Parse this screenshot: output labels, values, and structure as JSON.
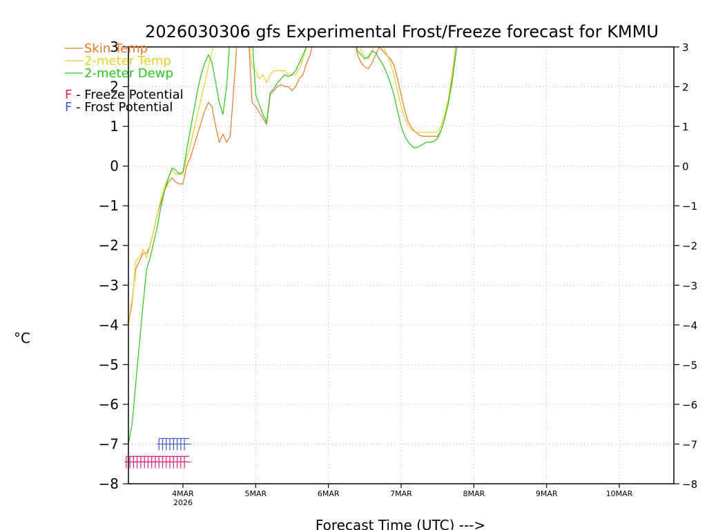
{
  "chart_data": {
    "type": "line",
    "title": "2026030306 gfs Experimental Frost/Freeze forecast for KMMU",
    "xlabel": "Forecast Time (UTC) --->",
    "ylabel": "°C",
    "ylim": [
      -8,
      3
    ],
    "xlim": [
      3.25,
      10.75
    ],
    "y_ticks": [
      "−8",
      "−7",
      "−6",
      "−5",
      "−4",
      "−3",
      "−2",
      "−1",
      "0",
      "1",
      "2",
      "3"
    ],
    "y_ticks_right": [
      "−8",
      "−7",
      "−6",
      "−5",
      "−4",
      "−3",
      "−2",
      "−1",
      "0",
      "1",
      "2",
      "3"
    ],
    "x_ticks": [
      {
        "day": 4,
        "label": "4MAR",
        "sub": "2026"
      },
      {
        "day": 5,
        "label": "5MAR"
      },
      {
        "day": 6,
        "label": "6MAR"
      },
      {
        "day": 7,
        "label": "7MAR"
      },
      {
        "day": 8,
        "label": "8MAR"
      },
      {
        "day": 9,
        "label": "9MAR"
      },
      {
        "day": 10,
        "label": "10MAR"
      }
    ],
    "grid": true,
    "series": [
      {
        "name": "Skin Temp",
        "color": "#e8782a",
        "points": [
          [
            3.25,
            -4.0
          ],
          [
            3.3,
            -3.4
          ],
          [
            3.35,
            -2.6
          ],
          [
            3.4,
            -2.4
          ],
          [
            3.45,
            -2.2
          ],
          [
            3.5,
            -2.2
          ],
          [
            3.55,
            -2.0
          ],
          [
            3.6,
            -1.6
          ],
          [
            3.65,
            -1.2
          ],
          [
            3.7,
            -0.9
          ],
          [
            3.75,
            -0.6
          ],
          [
            3.8,
            -0.4
          ],
          [
            3.85,
            -0.3
          ],
          [
            3.9,
            -0.4
          ],
          [
            3.95,
            -0.45
          ],
          [
            4.0,
            -0.45
          ],
          [
            4.05,
            0.0
          ],
          [
            4.1,
            0.2
          ],
          [
            4.15,
            0.5
          ],
          [
            4.2,
            0.8
          ],
          [
            4.25,
            1.1
          ],
          [
            4.3,
            1.4
          ],
          [
            4.35,
            1.6
          ],
          [
            4.4,
            1.5
          ],
          [
            4.45,
            1.0
          ],
          [
            4.5,
            0.6
          ],
          [
            4.55,
            0.8
          ],
          [
            4.6,
            0.6
          ],
          [
            4.65,
            0.75
          ],
          [
            4.7,
            2.0
          ],
          [
            4.75,
            3.3
          ],
          null,
          [
            4.9,
            3.3
          ],
          [
            4.95,
            1.6
          ],
          [
            5.0,
            1.5
          ],
          [
            5.05,
            1.35
          ],
          [
            5.1,
            1.2
          ],
          [
            5.15,
            1.05
          ],
          [
            5.2,
            1.8
          ],
          [
            5.25,
            1.9
          ],
          [
            5.3,
            2.0
          ],
          [
            5.35,
            2.05
          ],
          [
            5.4,
            2.0
          ],
          [
            5.45,
            2.0
          ],
          [
            5.5,
            1.9
          ],
          [
            5.55,
            2.0
          ],
          [
            5.6,
            2.2
          ],
          [
            5.65,
            2.3
          ],
          [
            5.7,
            2.6
          ],
          [
            5.75,
            2.8
          ],
          [
            5.8,
            3.2
          ],
          null,
          [
            6.35,
            3.3
          ],
          [
            6.4,
            2.8
          ],
          [
            6.45,
            2.6
          ],
          [
            6.5,
            2.5
          ],
          [
            6.55,
            2.45
          ],
          [
            6.6,
            2.6
          ],
          [
            6.65,
            2.8
          ],
          [
            6.7,
            3.0
          ],
          [
            6.75,
            2.9
          ],
          [
            6.8,
            2.8
          ],
          [
            6.85,
            2.7
          ],
          [
            6.9,
            2.55
          ],
          [
            6.95,
            2.2
          ],
          [
            7.0,
            1.8
          ],
          [
            7.05,
            1.4
          ],
          [
            7.1,
            1.1
          ],
          [
            7.15,
            0.95
          ],
          [
            7.2,
            0.85
          ],
          [
            7.25,
            0.78
          ],
          [
            7.3,
            0.75
          ],
          [
            7.35,
            0.75
          ],
          [
            7.4,
            0.75
          ],
          [
            7.45,
            0.75
          ],
          [
            7.5,
            0.75
          ],
          [
            7.55,
            0.9
          ],
          [
            7.6,
            1.2
          ],
          [
            7.65,
            1.6
          ],
          [
            7.7,
            2.2
          ],
          [
            7.75,
            3.0
          ],
          [
            7.8,
            3.5
          ]
        ]
      },
      {
        "name": "2-meter Temp",
        "color": "#e8d12a",
        "points": [
          [
            3.25,
            -4.0
          ],
          [
            3.3,
            -3.5
          ],
          [
            3.35,
            -2.4
          ],
          [
            3.4,
            -2.3
          ],
          [
            3.45,
            -2.1
          ],
          [
            3.5,
            -2.3
          ],
          [
            3.55,
            -2.0
          ],
          [
            3.6,
            -1.6
          ],
          [
            3.65,
            -1.2
          ],
          [
            3.7,
            -0.8
          ],
          [
            3.75,
            -0.5
          ],
          [
            3.8,
            -0.3
          ],
          [
            3.85,
            -0.1
          ],
          [
            3.9,
            -0.2
          ],
          [
            3.95,
            -0.2
          ],
          [
            4.0,
            -0.2
          ],
          [
            4.05,
            0.2
          ],
          [
            4.1,
            0.5
          ],
          [
            4.15,
            0.9
          ],
          [
            4.2,
            1.3
          ],
          [
            4.25,
            1.7
          ],
          [
            4.3,
            2.1
          ],
          [
            4.35,
            2.5
          ],
          [
            4.4,
            2.9
          ],
          [
            4.45,
            3.3
          ],
          null,
          [
            4.9,
            3.3
          ],
          [
            4.95,
            2.5
          ],
          [
            5.0,
            2.4
          ],
          [
            5.05,
            2.2
          ],
          [
            5.1,
            2.3
          ],
          [
            5.15,
            2.1
          ],
          [
            5.2,
            2.3
          ],
          [
            5.25,
            2.4
          ],
          [
            5.3,
            2.4
          ],
          [
            5.35,
            2.4
          ],
          [
            5.4,
            2.4
          ],
          [
            5.45,
            2.3
          ],
          [
            5.5,
            2.3
          ],
          [
            5.55,
            2.3
          ],
          [
            5.6,
            2.45
          ],
          [
            5.65,
            2.7
          ],
          [
            5.7,
            3.0
          ],
          [
            5.75,
            3.3
          ],
          null,
          [
            6.4,
            3.3
          ],
          [
            6.45,
            2.9
          ],
          [
            6.5,
            2.75
          ],
          [
            6.55,
            2.7
          ],
          [
            6.6,
            2.9
          ],
          [
            6.65,
            3.1
          ],
          [
            6.7,
            3.1
          ],
          [
            6.75,
            3.0
          ],
          [
            6.8,
            2.85
          ],
          [
            6.85,
            2.6
          ],
          [
            6.9,
            2.3
          ],
          [
            6.95,
            1.9
          ],
          [
            7.0,
            1.5
          ],
          [
            7.05,
            1.2
          ],
          [
            7.1,
            1.0
          ],
          [
            7.15,
            0.9
          ],
          [
            7.2,
            0.85
          ],
          [
            7.25,
            0.85
          ],
          [
            7.3,
            0.85
          ],
          [
            7.35,
            0.85
          ],
          [
            7.4,
            0.85
          ],
          [
            7.45,
            0.85
          ],
          [
            7.5,
            0.85
          ],
          [
            7.55,
            1.0
          ],
          [
            7.6,
            1.3
          ],
          [
            7.65,
            1.7
          ],
          [
            7.7,
            2.3
          ],
          [
            7.75,
            3.0
          ],
          [
            7.8,
            3.5
          ]
        ]
      },
      {
        "name": "2-meter Dewp",
        "color": "#2ac41e",
        "points": [
          [
            3.25,
            -7.0
          ],
          [
            3.3,
            -6.5
          ],
          [
            3.35,
            -5.5
          ],
          [
            3.4,
            -4.5
          ],
          [
            3.45,
            -3.5
          ],
          [
            3.5,
            -2.6
          ],
          [
            3.55,
            -2.3
          ],
          [
            3.6,
            -1.9
          ],
          [
            3.65,
            -1.5
          ],
          [
            3.7,
            -1.0
          ],
          [
            3.75,
            -0.6
          ],
          [
            3.8,
            -0.3
          ],
          [
            3.85,
            -0.05
          ],
          [
            3.9,
            -0.1
          ],
          [
            3.95,
            -0.2
          ],
          [
            4.0,
            -0.15
          ],
          [
            4.05,
            0.4
          ],
          [
            4.1,
            0.9
          ],
          [
            4.15,
            1.4
          ],
          [
            4.2,
            1.9
          ],
          [
            4.25,
            2.3
          ],
          [
            4.3,
            2.6
          ],
          [
            4.35,
            2.8
          ],
          [
            4.4,
            2.6
          ],
          [
            4.45,
            2.1
          ],
          [
            4.5,
            1.6
          ],
          [
            4.55,
            1.3
          ],
          [
            4.6,
            2.0
          ],
          [
            4.65,
            3.3
          ],
          null,
          [
            4.95,
            3.3
          ],
          [
            5.0,
            1.8
          ],
          [
            5.05,
            1.55
          ],
          [
            5.1,
            1.3
          ],
          [
            5.15,
            1.1
          ],
          [
            5.2,
            1.85
          ],
          [
            5.25,
            1.95
          ],
          [
            5.3,
            2.1
          ],
          [
            5.35,
            2.2
          ],
          [
            5.4,
            2.3
          ],
          [
            5.45,
            2.25
          ],
          [
            5.5,
            2.3
          ],
          [
            5.55,
            2.4
          ],
          [
            5.6,
            2.6
          ],
          [
            5.65,
            2.8
          ],
          [
            5.7,
            3.0
          ],
          [
            5.75,
            3.3
          ],
          null,
          [
            6.35,
            3.3
          ],
          [
            6.4,
            2.9
          ],
          [
            6.45,
            2.8
          ],
          [
            6.5,
            2.7
          ],
          [
            6.55,
            2.75
          ],
          [
            6.6,
            2.9
          ],
          [
            6.65,
            2.85
          ],
          [
            6.7,
            2.7
          ],
          [
            6.75,
            2.55
          ],
          [
            6.8,
            2.35
          ],
          [
            6.85,
            2.1
          ],
          [
            6.9,
            1.8
          ],
          [
            6.95,
            1.4
          ],
          [
            7.0,
            1.0
          ],
          [
            7.05,
            0.75
          ],
          [
            7.1,
            0.6
          ],
          [
            7.15,
            0.5
          ],
          [
            7.2,
            0.45
          ],
          [
            7.25,
            0.5
          ],
          [
            7.3,
            0.55
          ],
          [
            7.35,
            0.6
          ],
          [
            7.4,
            0.6
          ],
          [
            7.45,
            0.62
          ],
          [
            7.5,
            0.7
          ],
          [
            7.55,
            0.9
          ],
          [
            7.6,
            1.2
          ],
          [
            7.65,
            1.6
          ],
          [
            7.7,
            2.1
          ],
          [
            7.75,
            2.8
          ],
          [
            7.8,
            3.5
          ]
        ]
      }
    ],
    "potential_markers": [
      {
        "name": "Freeze Potential",
        "symbol": "F",
        "color": "#e0197d",
        "y": -7.45,
        "x": [
          3.22,
          3.27,
          3.32,
          3.37,
          3.42,
          3.47,
          3.52,
          3.57,
          3.62,
          3.67,
          3.72,
          3.77,
          3.82,
          3.87,
          3.92,
          3.97,
          4.02
        ]
      },
      {
        "name": "Frost Potential",
        "symbol": "F",
        "color": "#3a55d4",
        "y": -7.0,
        "x": [
          3.67,
          3.72,
          3.77,
          3.82,
          3.87,
          3.92,
          3.97,
          4.02
        ]
      }
    ],
    "legend": {
      "placement": "top-left",
      "lines": [
        "Skin Temp",
        "2-meter Temp",
        "2-meter Dewp"
      ],
      "markers": [
        {
          "symbol": "F",
          "text": " - Freeze Potential",
          "color": "#e0197d"
        },
        {
          "symbol": "F",
          "text": " - Frost Potential",
          "color": "#3a55d4"
        }
      ]
    }
  }
}
